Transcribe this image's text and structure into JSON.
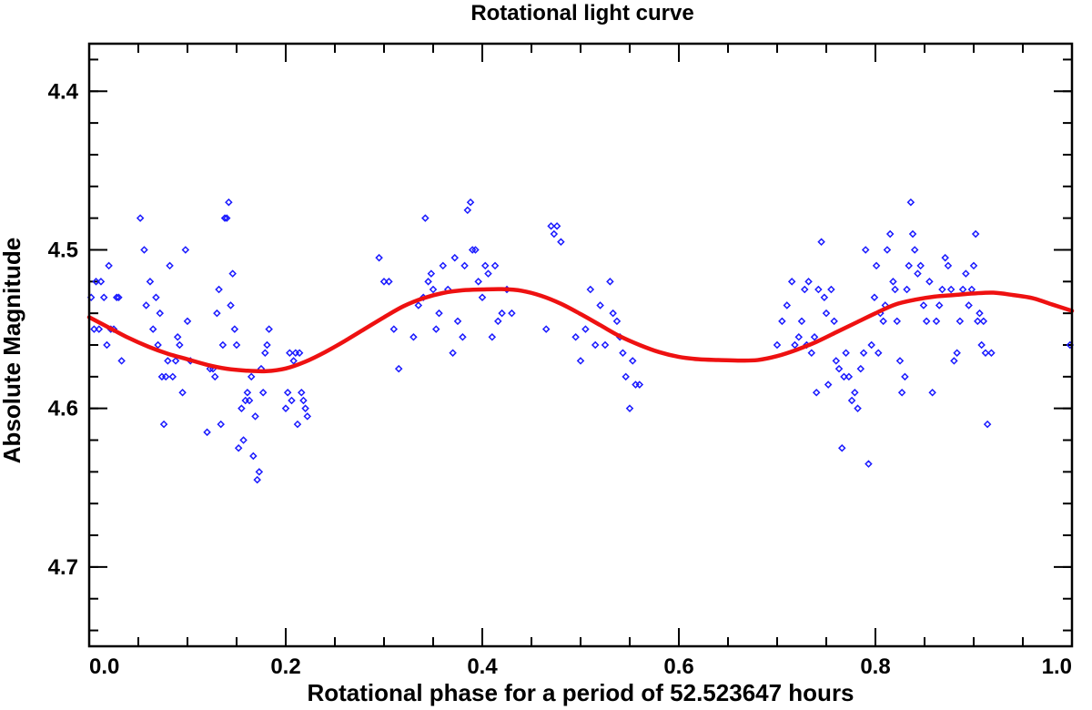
{
  "chart_data": {
    "type": "scatter",
    "title": "Rotational light curve",
    "xlabel": "Rotational phase for a period of  52.523647 hours",
    "ylabel": "Absolute Magnitude",
    "xlim": [
      0.0,
      1.0
    ],
    "ylim": [
      4.75,
      4.37
    ],
    "y_inverted": true,
    "grid": false,
    "x_ticks": [
      {
        "value": 0.0,
        "label": "0.0"
      },
      {
        "value": 0.2,
        "label": "0.2"
      },
      {
        "value": 0.4,
        "label": "0.4"
      },
      {
        "value": 0.6,
        "label": "0.6"
      },
      {
        "value": 0.8,
        "label": "0.8"
      },
      {
        "value": 1.0,
        "label": "1.0"
      }
    ],
    "y_ticks": [
      {
        "value": 4.4,
        "label": "4.4"
      },
      {
        "value": 4.5,
        "label": "4.5"
      },
      {
        "value": 4.6,
        "label": "4.6"
      },
      {
        "value": 4.7,
        "label": "4.7"
      }
    ],
    "x_minor_step": 0.05,
    "y_minor_step": 0.02,
    "series": [
      {
        "name": "observations",
        "kind": "scatter",
        "marker": "diamond",
        "color": "#1a1aff",
        "points": [
          [
            0.002,
            4.53
          ],
          [
            0.005,
            4.55
          ],
          [
            0.007,
            4.52
          ],
          [
            0.01,
            4.55
          ],
          [
            0.012,
            4.52
          ],
          [
            0.015,
            4.53
          ],
          [
            0.018,
            4.56
          ],
          [
            0.02,
            4.51
          ],
          [
            0.022,
            4.55
          ],
          [
            0.025,
            4.55
          ],
          [
            0.028,
            4.53
          ],
          [
            0.03,
            4.53
          ],
          [
            0.033,
            4.57
          ],
          [
            0.052,
            4.48
          ],
          [
            0.056,
            4.5
          ],
          [
            0.058,
            4.535
          ],
          [
            0.062,
            4.52
          ],
          [
            0.065,
            4.55
          ],
          [
            0.068,
            4.53
          ],
          [
            0.07,
            4.56
          ],
          [
            0.072,
            4.54
          ],
          [
            0.074,
            4.58
          ],
          [
            0.076,
            4.61
          ],
          [
            0.078,
            4.58
          ],
          [
            0.08,
            4.57
          ],
          [
            0.082,
            4.51
          ],
          [
            0.085,
            4.58
          ],
          [
            0.088,
            4.57
          ],
          [
            0.09,
            4.555
          ],
          [
            0.092,
            4.56
          ],
          [
            0.095,
            4.59
          ],
          [
            0.098,
            4.5
          ],
          [
            0.1,
            4.545
          ],
          [
            0.103,
            4.57
          ],
          [
            0.12,
            4.615
          ],
          [
            0.123,
            4.575
          ],
          [
            0.126,
            4.575
          ],
          [
            0.128,
            4.58
          ],
          [
            0.13,
            4.54
          ],
          [
            0.132,
            4.525
          ],
          [
            0.134,
            4.61
          ],
          [
            0.136,
            4.56
          ],
          [
            0.138,
            4.48
          ],
          [
            0.14,
            4.48
          ],
          [
            0.142,
            4.47
          ],
          [
            0.144,
            4.535
          ],
          [
            0.146,
            4.515
          ],
          [
            0.148,
            4.55
          ],
          [
            0.15,
            4.56
          ],
          [
            0.152,
            4.625
          ],
          [
            0.155,
            4.6
          ],
          [
            0.157,
            4.62
          ],
          [
            0.159,
            4.595
          ],
          [
            0.161,
            4.59
          ],
          [
            0.163,
            4.595
          ],
          [
            0.165,
            4.58
          ],
          [
            0.167,
            4.63
          ],
          [
            0.169,
            4.605
          ],
          [
            0.171,
            4.645
          ],
          [
            0.173,
            4.64
          ],
          [
            0.175,
            4.575
          ],
          [
            0.177,
            4.59
          ],
          [
            0.179,
            4.565
          ],
          [
            0.181,
            4.56
          ],
          [
            0.183,
            4.55
          ],
          [
            0.2,
            4.6
          ],
          [
            0.202,
            4.59
          ],
          [
            0.204,
            4.565
          ],
          [
            0.206,
            4.595
          ],
          [
            0.208,
            4.57
          ],
          [
            0.21,
            4.565
          ],
          [
            0.212,
            4.61
          ],
          [
            0.214,
            4.565
          ],
          [
            0.216,
            4.59
          ],
          [
            0.218,
            4.595
          ],
          [
            0.22,
            4.6
          ],
          [
            0.222,
            4.605
          ],
          [
            0.295,
            4.505
          ],
          [
            0.3,
            4.52
          ],
          [
            0.305,
            4.52
          ],
          [
            0.31,
            4.55
          ],
          [
            0.315,
            4.575
          ],
          [
            0.33,
            4.555
          ],
          [
            0.335,
            4.535
          ],
          [
            0.34,
            4.53
          ],
          [
            0.342,
            4.48
          ],
          [
            0.345,
            4.52
          ],
          [
            0.348,
            4.515
          ],
          [
            0.35,
            4.525
          ],
          [
            0.353,
            4.55
          ],
          [
            0.356,
            4.54
          ],
          [
            0.36,
            4.51
          ],
          [
            0.365,
            4.525
          ],
          [
            0.37,
            4.565
          ],
          [
            0.372,
            4.505
          ],
          [
            0.375,
            4.545
          ],
          [
            0.38,
            4.555
          ],
          [
            0.382,
            4.51
          ],
          [
            0.385,
            4.475
          ],
          [
            0.388,
            4.47
          ],
          [
            0.39,
            4.5
          ],
          [
            0.393,
            4.5
          ],
          [
            0.396,
            4.52
          ],
          [
            0.4,
            4.53
          ],
          [
            0.403,
            4.51
          ],
          [
            0.406,
            4.515
          ],
          [
            0.41,
            4.555
          ],
          [
            0.413,
            4.51
          ],
          [
            0.416,
            4.545
          ],
          [
            0.42,
            4.54
          ],
          [
            0.425,
            4.525
          ],
          [
            0.43,
            4.54
          ],
          [
            0.465,
            4.55
          ],
          [
            0.47,
            4.485
          ],
          [
            0.473,
            4.49
          ],
          [
            0.476,
            4.485
          ],
          [
            0.48,
            4.495
          ],
          [
            0.495,
            4.555
          ],
          [
            0.5,
            4.57
          ],
          [
            0.505,
            4.55
          ],
          [
            0.51,
            4.525
          ],
          [
            0.515,
            4.56
          ],
          [
            0.52,
            4.535
          ],
          [
            0.525,
            4.56
          ],
          [
            0.53,
            4.52
          ],
          [
            0.533,
            4.54
          ],
          [
            0.537,
            4.545
          ],
          [
            0.54,
            4.555
          ],
          [
            0.543,
            4.565
          ],
          [
            0.546,
            4.58
          ],
          [
            0.55,
            4.6
          ],
          [
            0.553,
            4.57
          ],
          [
            0.556,
            4.585
          ],
          [
            0.56,
            4.585
          ],
          [
            0.7,
            4.56
          ],
          [
            0.705,
            4.545
          ],
          [
            0.71,
            4.535
          ],
          [
            0.715,
            4.52
          ],
          [
            0.718,
            4.56
          ],
          [
            0.722,
            4.555
          ],
          [
            0.725,
            4.545
          ],
          [
            0.728,
            4.525
          ],
          [
            0.73,
            4.56
          ],
          [
            0.732,
            4.52
          ],
          [
            0.735,
            4.565
          ],
          [
            0.738,
            4.555
          ],
          [
            0.74,
            4.59
          ],
          [
            0.742,
            4.525
          ],
          [
            0.745,
            4.495
          ],
          [
            0.748,
            4.53
          ],
          [
            0.75,
            4.54
          ],
          [
            0.752,
            4.585
          ],
          [
            0.755,
            4.525
          ],
          [
            0.758,
            4.545
          ],
          [
            0.76,
            4.57
          ],
          [
            0.763,
            4.575
          ],
          [
            0.766,
            4.625
          ],
          [
            0.768,
            4.58
          ],
          [
            0.77,
            4.565
          ],
          [
            0.773,
            4.58
          ],
          [
            0.776,
            4.595
          ],
          [
            0.779,
            4.59
          ],
          [
            0.782,
            4.6
          ],
          [
            0.785,
            4.575
          ],
          [
            0.788,
            4.565
          ],
          [
            0.79,
            4.5
          ],
          [
            0.793,
            4.635
          ],
          [
            0.796,
            4.56
          ],
          [
            0.799,
            4.53
          ],
          [
            0.801,
            4.51
          ],
          [
            0.803,
            4.565
          ],
          [
            0.805,
            4.54
          ],
          [
            0.808,
            4.545
          ],
          [
            0.81,
            4.535
          ],
          [
            0.812,
            4.5
          ],
          [
            0.815,
            4.49
          ],
          [
            0.818,
            4.52
          ],
          [
            0.82,
            4.525
          ],
          [
            0.822,
            4.545
          ],
          [
            0.825,
            4.57
          ],
          [
            0.827,
            4.59
          ],
          [
            0.83,
            4.58
          ],
          [
            0.832,
            4.525
          ],
          [
            0.834,
            4.51
          ],
          [
            0.836,
            4.47
          ],
          [
            0.838,
            4.49
          ],
          [
            0.84,
            4.5
          ],
          [
            0.843,
            4.515
          ],
          [
            0.846,
            4.51
          ],
          [
            0.849,
            4.535
          ],
          [
            0.852,
            4.545
          ],
          [
            0.855,
            4.52
          ],
          [
            0.858,
            4.59
          ],
          [
            0.862,
            4.545
          ],
          [
            0.865,
            4.535
          ],
          [
            0.868,
            4.525
          ],
          [
            0.871,
            4.505
          ],
          [
            0.874,
            4.51
          ],
          [
            0.877,
            4.525
          ],
          [
            0.88,
            4.57
          ],
          [
            0.883,
            4.565
          ],
          [
            0.886,
            4.545
          ],
          [
            0.889,
            4.525
          ],
          [
            0.892,
            4.515
          ],
          [
            0.895,
            4.535
          ],
          [
            0.898,
            4.525
          ],
          [
            0.9,
            4.51
          ],
          [
            0.902,
            4.49
          ],
          [
            0.904,
            4.545
          ],
          [
            0.906,
            4.54
          ],
          [
            0.908,
            4.56
          ],
          [
            0.91,
            4.545
          ],
          [
            0.912,
            4.565
          ],
          [
            0.914,
            4.61
          ],
          [
            0.918,
            4.565
          ],
          [
            0.998,
            4.56
          ]
        ]
      },
      {
        "name": "fit",
        "kind": "line",
        "color": "#ee1111",
        "points": [
          [
            0.0,
            4.5425
          ],
          [
            0.02,
            4.549
          ],
          [
            0.04,
            4.5555
          ],
          [
            0.06,
            4.561
          ],
          [
            0.08,
            4.5655
          ],
          [
            0.1,
            4.569
          ],
          [
            0.12,
            4.5725
          ],
          [
            0.14,
            4.575
          ],
          [
            0.16,
            4.5762
          ],
          [
            0.18,
            4.5765
          ],
          [
            0.2,
            4.5748
          ],
          [
            0.22,
            4.5705
          ],
          [
            0.24,
            4.5645
          ],
          [
            0.26,
            4.5575
          ],
          [
            0.28,
            4.55
          ],
          [
            0.3,
            4.5425
          ],
          [
            0.32,
            4.5355
          ],
          [
            0.34,
            4.5305
          ],
          [
            0.36,
            4.5272
          ],
          [
            0.38,
            4.5255
          ],
          [
            0.4,
            4.525
          ],
          [
            0.42,
            4.5248
          ],
          [
            0.44,
            4.5258
          ],
          [
            0.46,
            4.529
          ],
          [
            0.48,
            4.534
          ],
          [
            0.5,
            4.5405
          ],
          [
            0.52,
            4.5475
          ],
          [
            0.54,
            4.5545
          ],
          [
            0.56,
            4.56
          ],
          [
            0.58,
            4.5645
          ],
          [
            0.6,
            4.5675
          ],
          [
            0.62,
            4.569
          ],
          [
            0.64,
            4.5695
          ],
          [
            0.66,
            4.5698
          ],
          [
            0.68,
            4.5695
          ],
          [
            0.7,
            4.567
          ],
          [
            0.72,
            4.563
          ],
          [
            0.74,
            4.558
          ],
          [
            0.76,
            4.552
          ],
          [
            0.78,
            4.546
          ],
          [
            0.8,
            4.54
          ],
          [
            0.82,
            4.5345
          ],
          [
            0.84,
            4.5315
          ],
          [
            0.86,
            4.5295
          ],
          [
            0.88,
            4.5285
          ],
          [
            0.9,
            4.5275
          ],
          [
            0.92,
            4.527
          ],
          [
            0.94,
            4.5285
          ],
          [
            0.96,
            4.5305
          ],
          [
            0.98,
            4.5345
          ],
          [
            1.0,
            4.5385
          ]
        ]
      }
    ]
  }
}
